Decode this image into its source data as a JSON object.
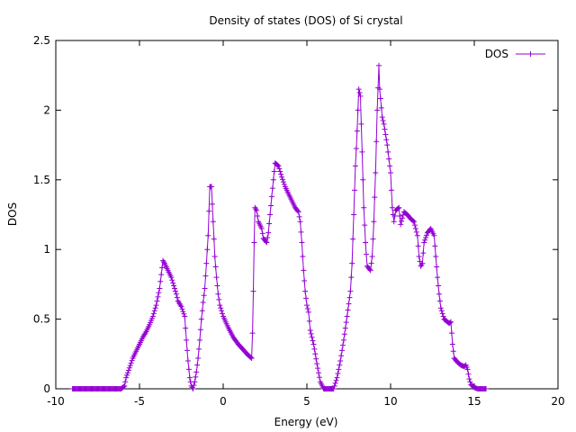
{
  "chart_data": {
    "type": "line",
    "title": "Density of states (DOS) of Si crystal",
    "xlabel": "Energy (eV)",
    "ylabel": "DOS",
    "xlim": [
      -10,
      20
    ],
    "ylim": [
      0,
      2.5
    ],
    "xticks": [
      "-10",
      "-5",
      "0",
      "5",
      "10",
      "15",
      "20"
    ],
    "yticks": [
      "0",
      "0.5",
      "1",
      "1.5",
      "2",
      "2.5"
    ],
    "grid": false,
    "legend_position": "top-right",
    "marker": "plus",
    "series": [
      {
        "name": "DOS",
        "color": "#9400d3",
        "points": [
          [
            -9.0,
            0.0
          ],
          [
            -8.0,
            0.0
          ],
          [
            -7.0,
            0.0
          ],
          [
            -6.1,
            0.0
          ],
          [
            -5.9,
            0.02
          ],
          [
            -5.8,
            0.08
          ],
          [
            -5.6,
            0.15
          ],
          [
            -5.4,
            0.22
          ],
          [
            -5.2,
            0.27
          ],
          [
            -5.0,
            0.32
          ],
          [
            -4.8,
            0.37
          ],
          [
            -4.6,
            0.41
          ],
          [
            -4.4,
            0.46
          ],
          [
            -4.2,
            0.52
          ],
          [
            -4.0,
            0.6
          ],
          [
            -3.8,
            0.72
          ],
          [
            -3.7,
            0.82
          ],
          [
            -3.6,
            0.92
          ],
          [
            -3.5,
            0.9
          ],
          [
            -3.3,
            0.85
          ],
          [
            -3.1,
            0.8
          ],
          [
            -2.9,
            0.72
          ],
          [
            -2.8,
            0.68
          ],
          [
            -2.7,
            0.63
          ],
          [
            -2.5,
            0.59
          ],
          [
            -2.3,
            0.52
          ],
          [
            -2.2,
            0.35
          ],
          [
            -2.1,
            0.2
          ],
          [
            -2.0,
            0.08
          ],
          [
            -1.9,
            0.02
          ],
          [
            -1.8,
            0.0
          ],
          [
            -1.7,
            0.05
          ],
          [
            -1.6,
            0.12
          ],
          [
            -1.5,
            0.22
          ],
          [
            -1.4,
            0.35
          ],
          [
            -1.3,
            0.5
          ],
          [
            -1.2,
            0.62
          ],
          [
            -1.1,
            0.72
          ],
          [
            -1.0,
            0.9
          ],
          [
            -0.9,
            1.1
          ],
          [
            -0.8,
            1.45
          ],
          [
            -0.7,
            1.45
          ],
          [
            -0.6,
            1.2
          ],
          [
            -0.5,
            0.95
          ],
          [
            -0.4,
            0.8
          ],
          [
            -0.3,
            0.68
          ],
          [
            -0.2,
            0.6
          ],
          [
            0.0,
            0.52
          ],
          [
            0.3,
            0.44
          ],
          [
            0.6,
            0.37
          ],
          [
            0.9,
            0.32
          ],
          [
            1.2,
            0.28
          ],
          [
            1.5,
            0.24
          ],
          [
            1.7,
            0.22
          ],
          [
            1.75,
            0.4
          ],
          [
            1.8,
            0.7
          ],
          [
            1.85,
            1.05
          ],
          [
            1.9,
            1.3
          ],
          [
            2.0,
            1.28
          ],
          [
            2.1,
            1.2
          ],
          [
            2.3,
            1.15
          ],
          [
            2.4,
            1.08
          ],
          [
            2.6,
            1.05
          ],
          [
            2.7,
            1.12
          ],
          [
            2.8,
            1.25
          ],
          [
            2.9,
            1.38
          ],
          [
            3.0,
            1.5
          ],
          [
            3.1,
            1.62
          ],
          [
            3.3,
            1.6
          ],
          [
            3.5,
            1.52
          ],
          [
            3.7,
            1.45
          ],
          [
            3.9,
            1.4
          ],
          [
            4.1,
            1.35
          ],
          [
            4.3,
            1.3
          ],
          [
            4.5,
            1.27
          ],
          [
            4.6,
            1.2
          ],
          [
            4.7,
            1.05
          ],
          [
            4.8,
            0.85
          ],
          [
            4.9,
            0.7
          ],
          [
            5.0,
            0.6
          ],
          [
            5.1,
            0.55
          ],
          [
            5.2,
            0.42
          ],
          [
            5.4,
            0.32
          ],
          [
            5.6,
            0.18
          ],
          [
            5.8,
            0.05
          ],
          [
            6.0,
            0.0
          ],
          [
            6.4,
            0.0
          ],
          [
            6.6,
            0.0
          ],
          [
            6.8,
            0.08
          ],
          [
            7.0,
            0.2
          ],
          [
            7.2,
            0.35
          ],
          [
            7.4,
            0.52
          ],
          [
            7.6,
            0.7
          ],
          [
            7.7,
            0.9
          ],
          [
            7.8,
            1.25
          ],
          [
            7.9,
            1.6
          ],
          [
            8.0,
            1.85
          ],
          [
            8.1,
            2.15
          ],
          [
            8.2,
            2.1
          ],
          [
            8.3,
            1.7
          ],
          [
            8.4,
            1.3
          ],
          [
            8.5,
            1.05
          ],
          [
            8.6,
            0.88
          ],
          [
            8.8,
            0.85
          ],
          [
            8.9,
            0.95
          ],
          [
            9.0,
            1.2
          ],
          [
            9.1,
            1.55
          ],
          [
            9.2,
            2.0
          ],
          [
            9.3,
            2.32
          ],
          [
            9.35,
            2.15
          ],
          [
            9.5,
            1.95
          ],
          [
            9.6,
            1.9
          ],
          [
            9.8,
            1.75
          ],
          [
            10.0,
            1.55
          ],
          [
            10.1,
            1.3
          ],
          [
            10.2,
            1.2
          ],
          [
            10.3,
            1.28
          ],
          [
            10.5,
            1.3
          ],
          [
            10.6,
            1.18
          ],
          [
            10.8,
            1.27
          ],
          [
            11.0,
            1.25
          ],
          [
            11.2,
            1.22
          ],
          [
            11.4,
            1.2
          ],
          [
            11.6,
            1.1
          ],
          [
            11.7,
            0.95
          ],
          [
            11.8,
            0.88
          ],
          [
            11.9,
            0.9
          ],
          [
            12.0,
            1.05
          ],
          [
            12.2,
            1.12
          ],
          [
            12.4,
            1.15
          ],
          [
            12.6,
            1.1
          ],
          [
            12.7,
            0.95
          ],
          [
            12.8,
            0.8
          ],
          [
            12.9,
            0.68
          ],
          [
            13.0,
            0.58
          ],
          [
            13.2,
            0.5
          ],
          [
            13.4,
            0.48
          ],
          [
            13.5,
            0.47
          ],
          [
            13.6,
            0.48
          ],
          [
            13.7,
            0.32
          ],
          [
            13.8,
            0.22
          ],
          [
            14.0,
            0.19
          ],
          [
            14.2,
            0.17
          ],
          [
            14.4,
            0.16
          ],
          [
            14.5,
            0.17
          ],
          [
            14.6,
            0.14
          ],
          [
            14.7,
            0.07
          ],
          [
            14.8,
            0.03
          ],
          [
            15.0,
            0.01
          ],
          [
            15.2,
            0.0
          ],
          [
            15.7,
            0.0
          ]
        ]
      }
    ]
  }
}
